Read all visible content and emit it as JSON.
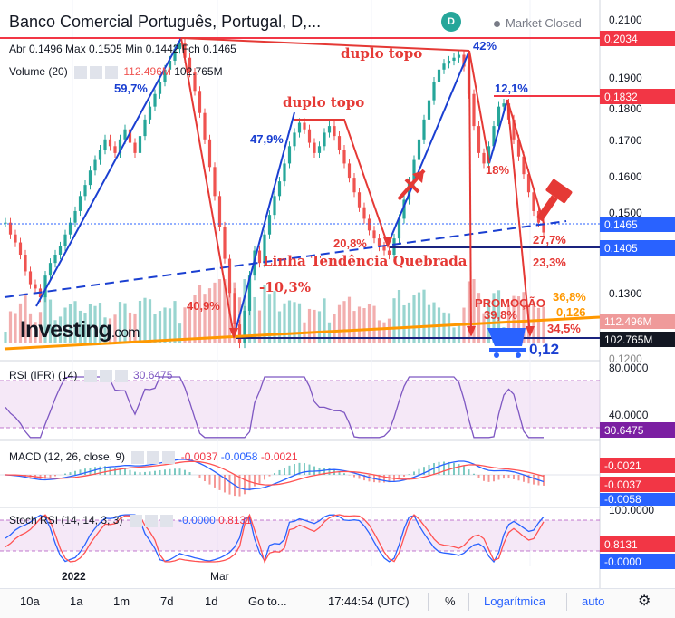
{
  "header": {
    "title": "Banco Comercial Português, Portugal, D,...",
    "badge": "D",
    "market_status": "Market Closed",
    "ohlc": "Abr 0.1496  Max 0.1505  Min 0.1442  Fch 0.1465",
    "volume_label": "Volume (20)",
    "volume_ma": "112.496M",
    "volume_value": "102.765M"
  },
  "price_axis": {
    "ticks": [
      "0.2100",
      "0.1900",
      "0.1800",
      "0.1700",
      "0.1600",
      "0.1500",
      "0.1300",
      "0.1200"
    ],
    "tags": [
      {
        "text": "0.2034",
        "color": "#f23645"
      },
      {
        "text": "0.1832",
        "color": "#f23645"
      },
      {
        "text": "0.1465",
        "color": "#2962ff"
      },
      {
        "text": "0.1405",
        "color": "#2962ff"
      },
      {
        "text": "112.496M",
        "color": "#ef9a9a"
      },
      {
        "text": "102.765M",
        "color": "#131722"
      }
    ]
  },
  "annotations": {
    "duplo_topo_1": "duplo topo",
    "duplo_topo_2": "duplo topo",
    "pct_59": "59,7%",
    "pct_47": "47,9%",
    "pct_42": "42%",
    "pct_12": "12,1%",
    "pct_18": "18%",
    "pct_40": "40,9%",
    "pct_10": "-10,3%",
    "pct_20": "20,8%",
    "pct_27": "27,7%",
    "pct_23": "23,3%",
    "pct_36": "36,8%",
    "val_126": "0,126",
    "pct_39": "39,8%",
    "pct_34": "34,5%",
    "promocao": "PROMOÇÃO",
    "val_012": "0,12",
    "linha": "Linha Tendência Quebrada",
    "investing": "Investing",
    "investing_com": ".com"
  },
  "rsi": {
    "label": "RSI (IFR) (14)",
    "value": "30.6475",
    "ticks": [
      "80.0000",
      "40.0000"
    ],
    "tag": "30.6475"
  },
  "macd": {
    "label": "MACD (12, 26, close, 9)",
    "v1": "-0.0037",
    "v2": "-0.0058",
    "v3": "-0.0021",
    "tags": [
      "-0.0021",
      "-0.0037",
      "-0.0058"
    ]
  },
  "stoch": {
    "label": "Stoch RSI (14, 14, 3, 3)",
    "v1": "-0.0000",
    "v2": "0.8131",
    "ticks": [
      "100.0000"
    ],
    "tags": [
      "0.8131",
      "-0.0000"
    ]
  },
  "time_axis": [
    "2022",
    "Mar"
  ],
  "toolbar": {
    "items": [
      "10a",
      "1a",
      "1m",
      "7d",
      "1d",
      "Go to...",
      "17:44:54 (UTC)",
      "%",
      "Logarítmica",
      "auto"
    ],
    "settings_icon": "gear-icon"
  },
  "chart_data": {
    "type": "candlestick",
    "title": "Banco Comercial Português, Portugal, D",
    "ylim": [
      0.118,
      0.212
    ],
    "y_scale": "log",
    "last_close": 0.1465,
    "closes": [
      0.149,
      0.146,
      0.144,
      0.141,
      0.137,
      0.134,
      0.133,
      0.131,
      0.136,
      0.139,
      0.141,
      0.143,
      0.146,
      0.149,
      0.152,
      0.156,
      0.159,
      0.163,
      0.166,
      0.169,
      0.172,
      0.17,
      0.168,
      0.172,
      0.175,
      0.171,
      0.168,
      0.173,
      0.178,
      0.182,
      0.186,
      0.19,
      0.194,
      0.197,
      0.201,
      0.203,
      0.198,
      0.193,
      0.187,
      0.18,
      0.172,
      0.164,
      0.156,
      0.148,
      0.14,
      0.132,
      0.125,
      0.121,
      0.128,
      0.136,
      0.142,
      0.139,
      0.146,
      0.151,
      0.156,
      0.16,
      0.165,
      0.17,
      0.174,
      0.177,
      0.175,
      0.171,
      0.168,
      0.17,
      0.174,
      0.176,
      0.173,
      0.169,
      0.165,
      0.161,
      0.157,
      0.153,
      0.15,
      0.147,
      0.145,
      0.143,
      0.142,
      0.141,
      0.145,
      0.15,
      0.155,
      0.16,
      0.166,
      0.172,
      0.178,
      0.184,
      0.19,
      0.194,
      0.196,
      0.197,
      0.198,
      0.199,
      0.195,
      0.186,
      0.176,
      0.168,
      0.165,
      0.17,
      0.176,
      0.182,
      0.183,
      0.178,
      0.172,
      0.167,
      0.162,
      0.157,
      0.152,
      0.149,
      0.1465
    ]
  }
}
